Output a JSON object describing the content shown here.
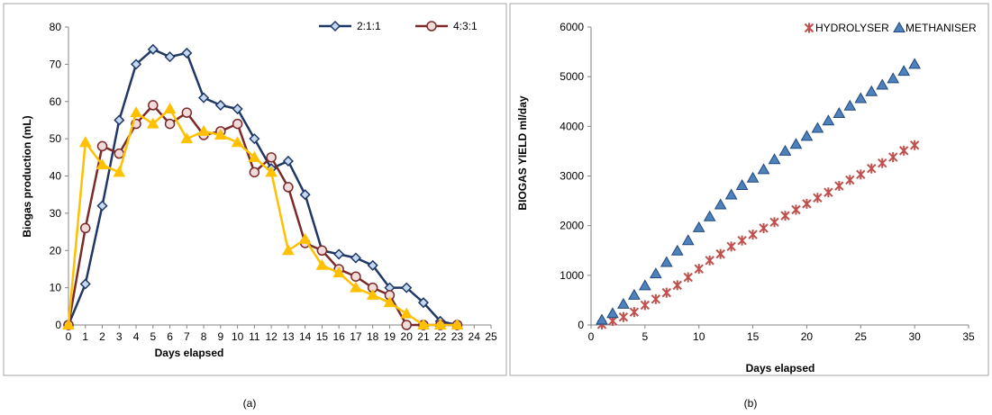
{
  "chart_data": [
    {
      "type": "line",
      "caption": "(a)",
      "xlabel": "Days elapsed",
      "ylabel": "Biogas production (mL)",
      "xlim": [
        0,
        25
      ],
      "ylim": [
        0,
        80
      ],
      "xticks": [
        0,
        1,
        2,
        3,
        4,
        5,
        6,
        7,
        8,
        9,
        10,
        11,
        12,
        13,
        14,
        15,
        16,
        17,
        18,
        19,
        20,
        21,
        22,
        23,
        24,
        25
      ],
      "yticks": [
        0,
        10,
        20,
        30,
        40,
        50,
        60,
        70,
        80
      ],
      "legend_position": "top-right",
      "grid": false,
      "series": [
        {
          "name": "2:1:1",
          "color": "#1f3864",
          "marker": "diamond",
          "marker_fill": "#c6d9f1",
          "x": [
            0,
            1,
            2,
            3,
            4,
            5,
            6,
            7,
            8,
            9,
            10,
            11,
            12,
            13,
            14,
            15,
            16,
            17,
            18,
            19,
            20,
            21,
            22,
            23
          ],
          "values": [
            0,
            11,
            32,
            55,
            70,
            74,
            72,
            73,
            61,
            59,
            58,
            50,
            42,
            44,
            35,
            20,
            19,
            18,
            16,
            10,
            10,
            6,
            1,
            0
          ]
        },
        {
          "name": "4:3:1",
          "color": "#7b2a2a",
          "marker": "circle",
          "marker_fill": "#f2dcdb",
          "x": [
            0,
            1,
            2,
            3,
            4,
            5,
            6,
            7,
            8,
            9,
            10,
            11,
            12,
            13,
            14,
            15,
            16,
            17,
            18,
            19,
            20,
            21,
            22,
            23
          ],
          "values": [
            0,
            26,
            48,
            46,
            54,
            59,
            54,
            57,
            51,
            52,
            54,
            41,
            45,
            37,
            22,
            20,
            15,
            13,
            10,
            8,
            0,
            0,
            0,
            0
          ]
        },
        {
          "color": "#ffc000",
          "marker": "triangle",
          "marker_fill": "#ffc000",
          "x": [
            0,
            1,
            2,
            3,
            4,
            5,
            6,
            7,
            8,
            9,
            10,
            11,
            12,
            13,
            14,
            15,
            16,
            17,
            18,
            19,
            20,
            21,
            22,
            23
          ],
          "values": [
            0,
            49,
            43,
            41,
            57,
            54,
            58,
            50,
            52,
            51,
            49,
            45,
            41,
            20,
            23,
            16,
            14,
            10,
            8,
            6,
            3,
            0,
            0,
            0
          ]
        }
      ]
    },
    {
      "type": "scatter",
      "caption": "(b)",
      "xlabel": "Days elapsed",
      "ylabel": "BIOGAS YIELD  ml/day",
      "xlim": [
        0,
        35
      ],
      "ylim": [
        0,
        6000
      ],
      "xticks": [
        0,
        5,
        10,
        15,
        20,
        25,
        30,
        35
      ],
      "yticks": [
        0,
        1000,
        2000,
        3000,
        4000,
        5000,
        6000
      ],
      "legend_position": "top-right",
      "grid": false,
      "series": [
        {
          "name": "HYDROLYSER",
          "color": "#c0504d",
          "marker": "asterisk",
          "x": [
            1,
            2,
            3,
            4,
            5,
            6,
            7,
            8,
            9,
            10,
            11,
            12,
            13,
            14,
            15,
            16,
            17,
            18,
            19,
            20,
            21,
            22,
            23,
            24,
            25,
            26,
            27,
            28,
            29,
            30
          ],
          "values": [
            10,
            80,
            160,
            260,
            400,
            520,
            650,
            800,
            960,
            1130,
            1300,
            1430,
            1580,
            1700,
            1820,
            1950,
            2070,
            2200,
            2320,
            2440,
            2560,
            2670,
            2800,
            2920,
            3030,
            3150,
            3260,
            3380,
            3510,
            3620
          ]
        },
        {
          "name": "METHANISER",
          "color": "#4f81bd",
          "marker": "triangle",
          "x": [
            1,
            2,
            3,
            4,
            5,
            6,
            7,
            8,
            9,
            10,
            11,
            12,
            13,
            14,
            15,
            16,
            17,
            18,
            19,
            20,
            21,
            22,
            23,
            24,
            25,
            26,
            27,
            28,
            29,
            30
          ],
          "values": [
            100,
            230,
            420,
            600,
            790,
            1030,
            1260,
            1490,
            1700,
            1960,
            2180,
            2420,
            2620,
            2810,
            2960,
            3130,
            3330,
            3500,
            3640,
            3800,
            3960,
            4110,
            4260,
            4410,
            4560,
            4700,
            4830,
            4960,
            5110,
            5250
          ]
        }
      ]
    }
  ]
}
